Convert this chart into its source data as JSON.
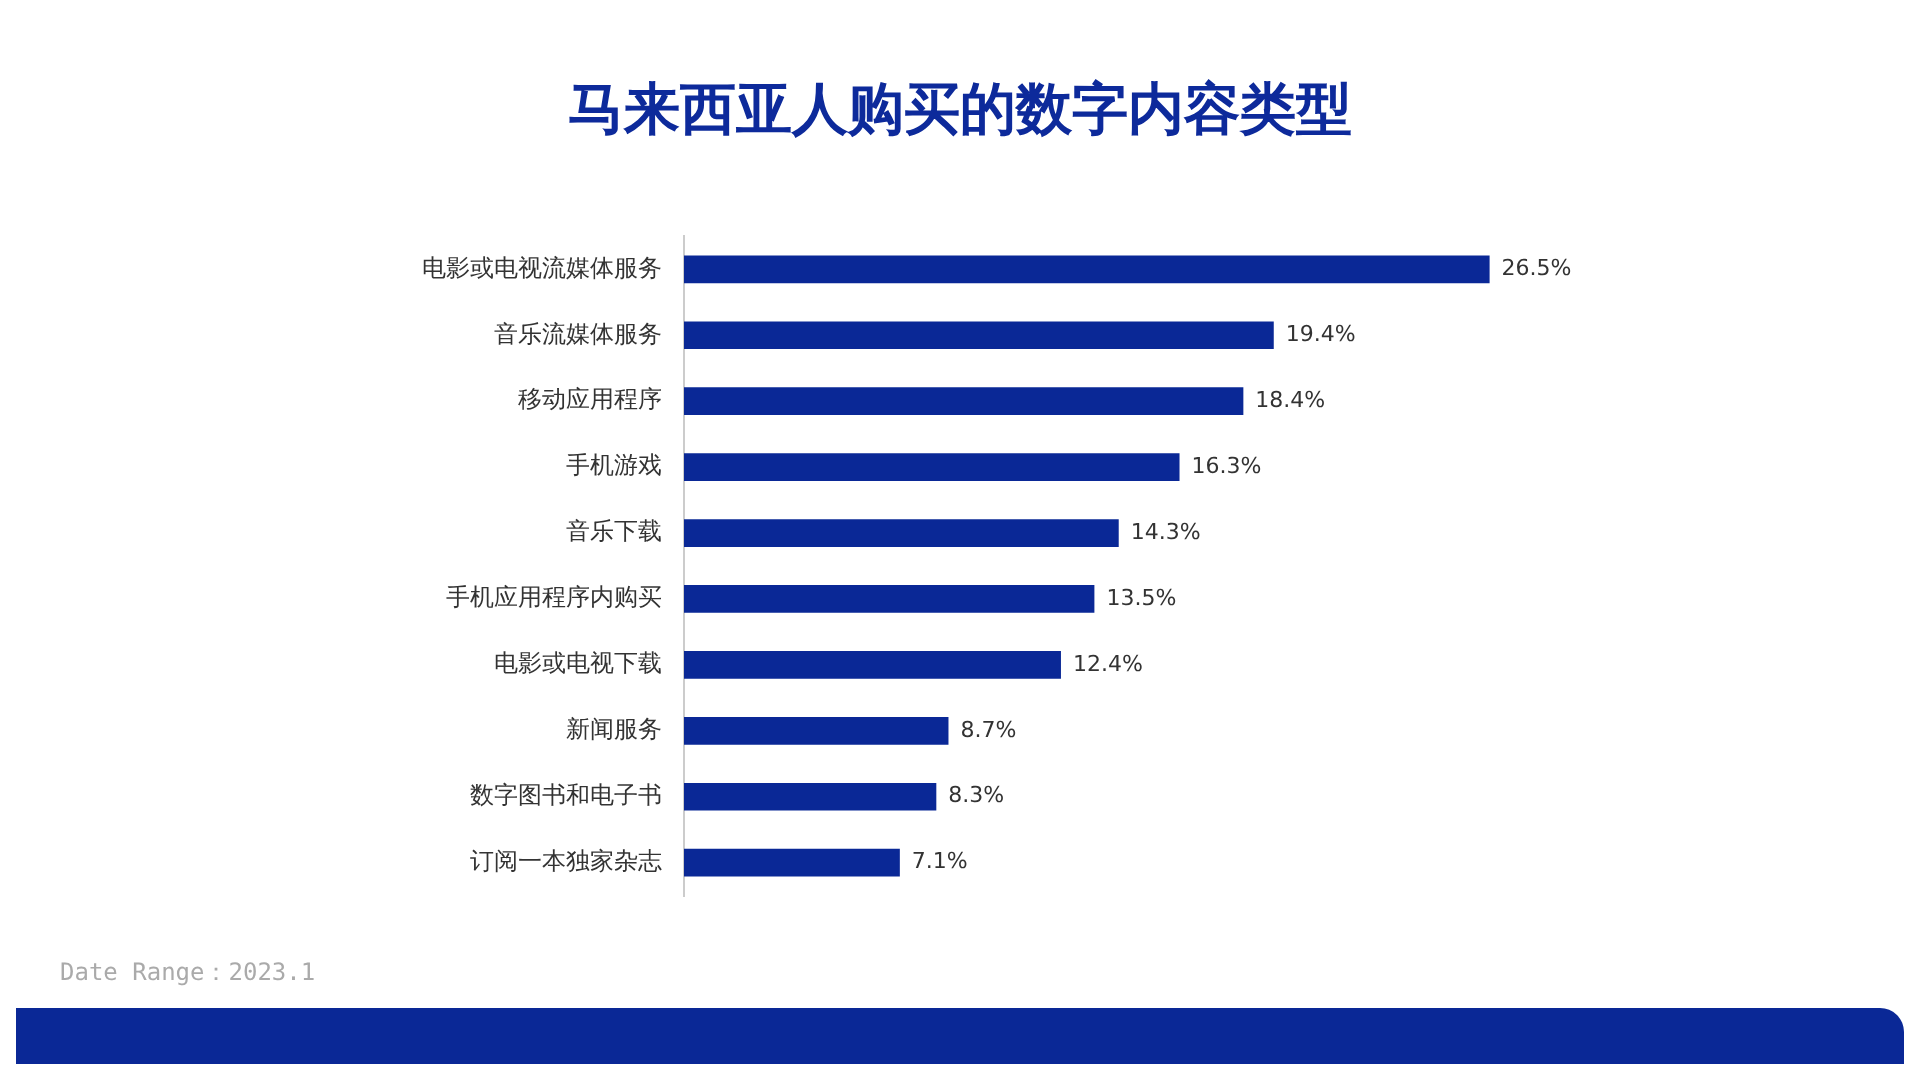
{
  "chart_data": {
    "type": "bar",
    "orientation": "horizontal",
    "title": "马来西亚人购买的数字内容类型",
    "categories": [
      "电影或电视流媒体服务",
      "音乐流媒体服务",
      "移动应用程序",
      "手机游戏",
      "音乐下载",
      "手机应用程序内购买",
      "电影或电视下载",
      "新闻服务",
      "数字图书和电子书",
      "订阅一本独家杂志"
    ],
    "values": [
      26.5,
      19.4,
      18.4,
      16.3,
      14.3,
      13.5,
      12.4,
      8.7,
      8.3,
      7.1
    ],
    "value_labels": [
      "26.5%",
      "19.4%",
      "18.4%",
      "16.3%",
      "14.3%",
      "13.5%",
      "12.4%",
      "8.7%",
      "8.3%",
      "7.1%"
    ],
    "color": "#0a2896",
    "legend": false,
    "annotations": [
      "Date Range：2023.1"
    ]
  }
}
